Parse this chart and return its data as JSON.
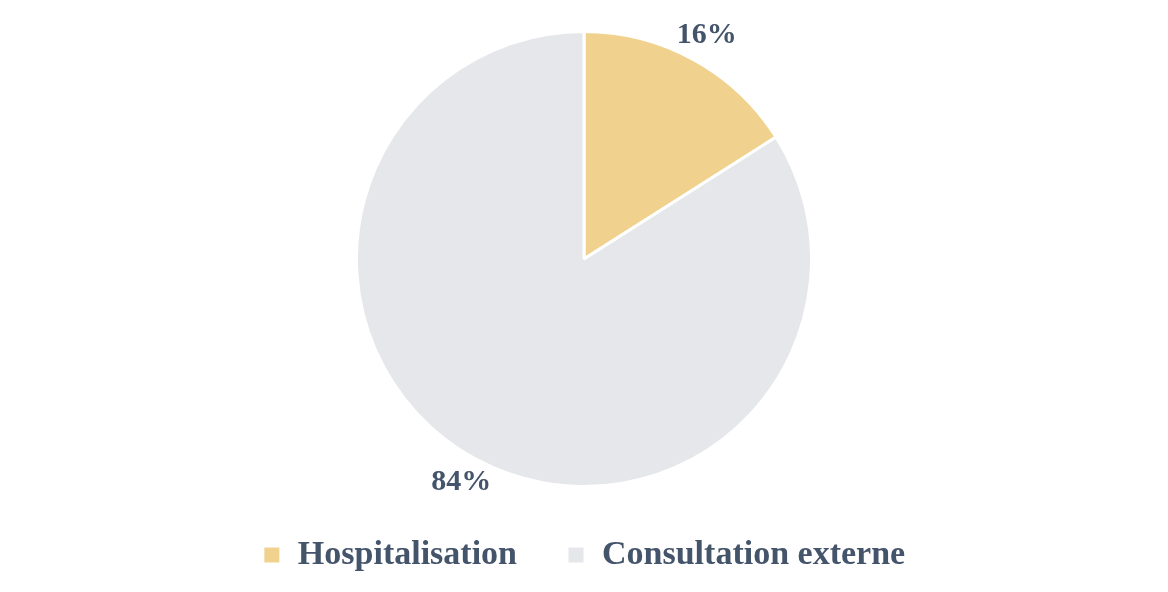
{
  "chart_data": {
    "type": "pie",
    "categories": [
      "Hospitalisation",
      "Consultation externe"
    ],
    "values": [
      16,
      84
    ],
    "colors": [
      "#f0d28e",
      "#e6e7ea"
    ],
    "value_labels": [
      "16%",
      "84%"
    ],
    "legend": "bottom"
  }
}
